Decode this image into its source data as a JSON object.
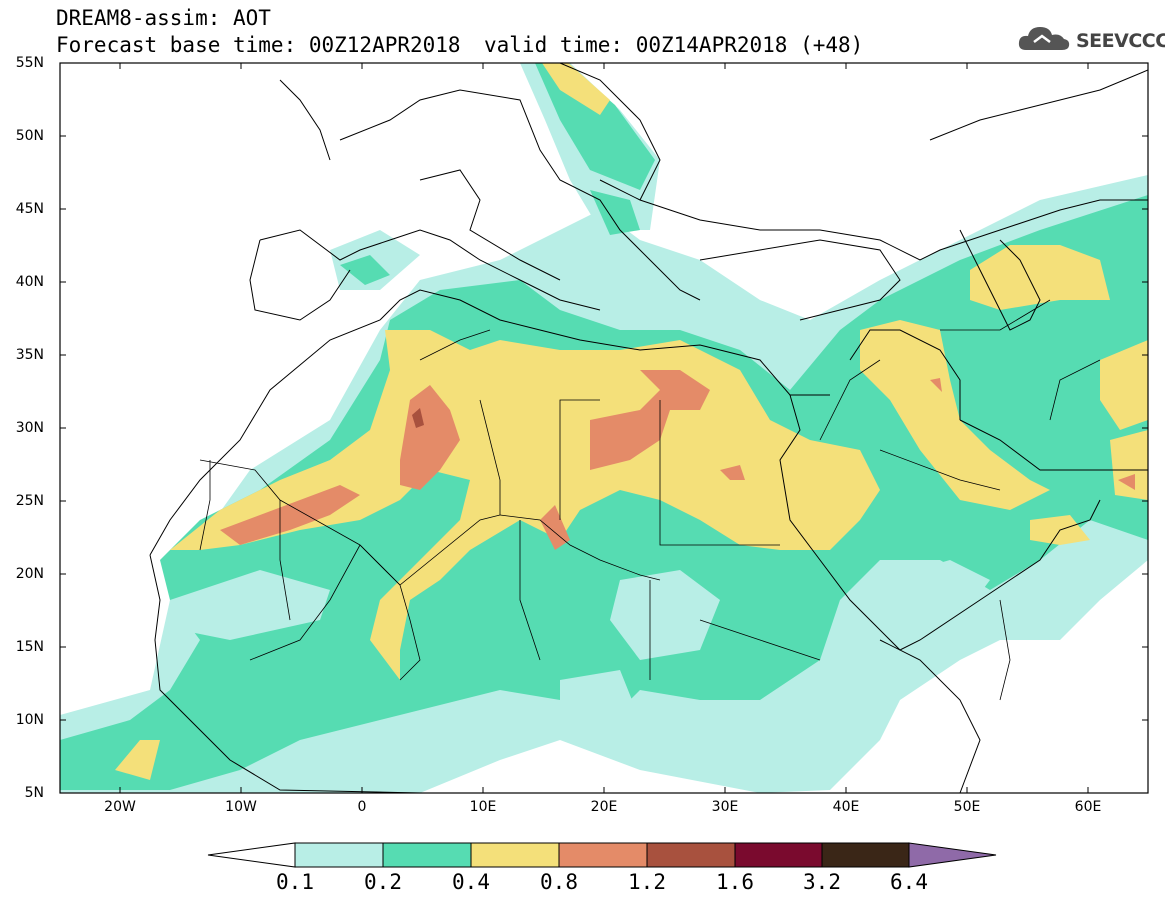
{
  "header": {
    "title": "DREAM8-assim: AOT",
    "base_time": "Forecast base time: 00Z12APR2018",
    "valid_time": "valid time: 00Z14APR2018 (+48)"
  },
  "logo": {
    "text": "SEEVCCC",
    "icon": "cloud-icon"
  },
  "map": {
    "variable": "AOT",
    "latitude_labels": [
      "55N",
      "50N",
      "45N",
      "40N",
      "35N",
      "30N",
      "25N",
      "20N",
      "15N",
      "10N",
      "5N"
    ],
    "longitude_labels": [
      "20W",
      "10W",
      "0",
      "10E",
      "20E",
      "30E",
      "40E",
      "50E",
      "60E"
    ],
    "lon_range": [
      -25,
      65
    ],
    "lat_range": [
      5,
      55
    ]
  },
  "colorbar": {
    "labels": [
      "0.1",
      "0.2",
      "0.4",
      "0.8",
      "1.2",
      "1.6",
      "3.2",
      "6.4"
    ],
    "colors": {
      "below": "#ffffff",
      "0.1-0.2": "#b8eee6",
      "0.2-0.4": "#56dcb2",
      "0.4-0.8": "#f4e07a",
      "0.8-1.2": "#e48b68",
      "1.2-1.6": "#a8513e",
      "1.6-3.2": "#7a0a2e",
      "3.2-6.4": "#3a2617",
      "above": "#8f6aa8"
    }
  }
}
